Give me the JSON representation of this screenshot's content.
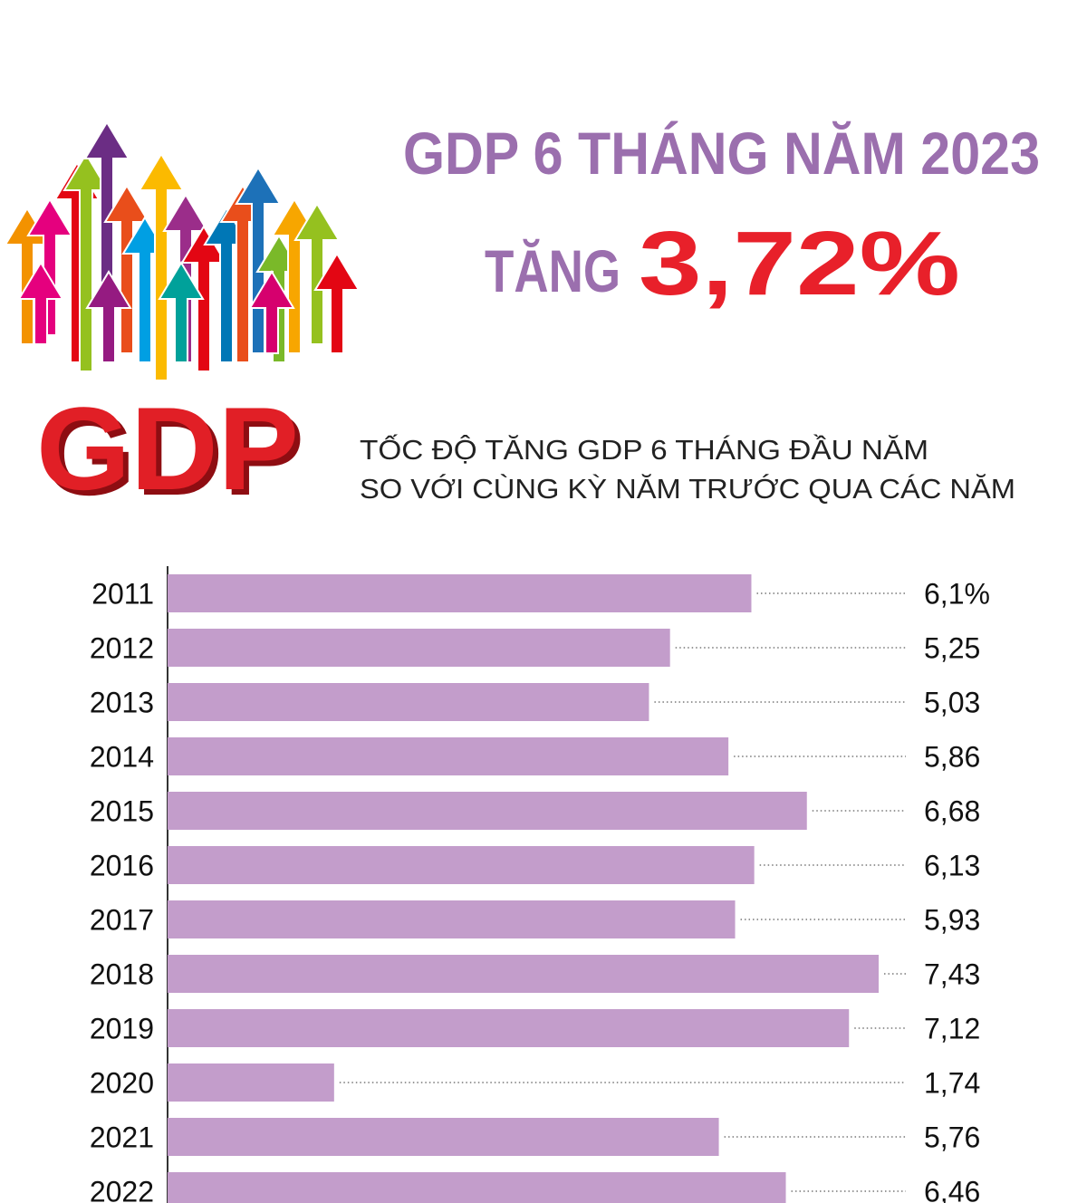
{
  "chart_data": {
    "type": "bar",
    "orientation": "horizontal",
    "logo_text": "GDP",
    "title": "GDP 6 THÁNG NĂM 2023",
    "headline_prefix": "TĂNG",
    "headline_value": "3,72%",
    "subtitle": [
      "TỐC ĐỘ TĂNG GDP 6 THÁNG ĐẦU NĂM",
      "SO VỚI CÙNG KỲ NĂM TRƯỚC QUA CÁC NĂM"
    ],
    "categories": [
      "2011",
      "2012",
      "2013",
      "2014",
      "2015",
      "2016",
      "2017",
      "2018",
      "2019",
      "2020",
      "2021",
      "2022"
    ],
    "values": [
      6.1,
      5.25,
      5.03,
      5.86,
      6.68,
      6.13,
      5.93,
      7.43,
      7.12,
      1.74,
      5.76,
      6.46
    ],
    "value_labels": [
      "6,1%",
      "5,25",
      "5,03",
      "5,86",
      "6,68",
      "6,13",
      "5,93",
      "7,43",
      "7,12",
      "1,74",
      "5,76",
      "6,46"
    ],
    "color": "#c39dcb"
  }
}
